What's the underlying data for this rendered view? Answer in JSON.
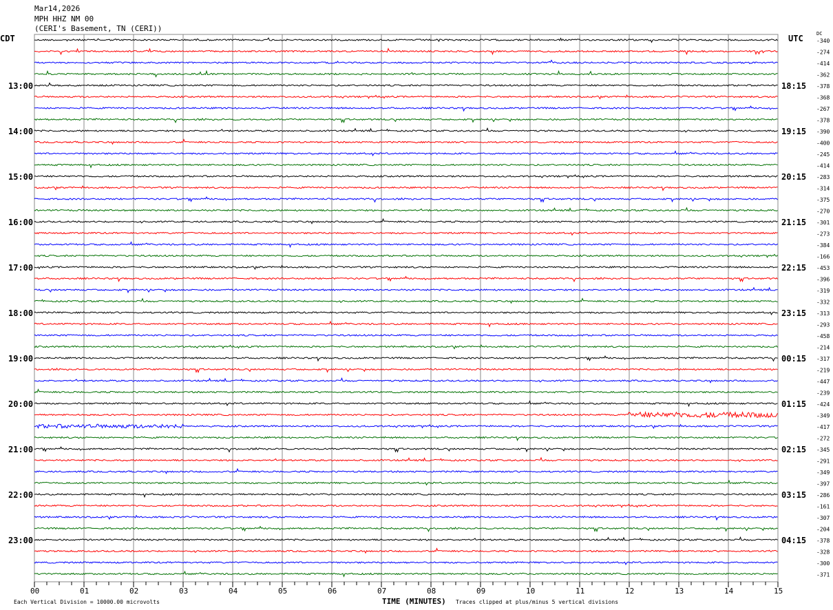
{
  "header": {
    "date": "Mar14,2026",
    "station": "MPH HHZ NM 00",
    "location": "(CERI's Basement, TN (CERI))"
  },
  "left_tz": "CDT",
  "right_tz": "UTC",
  "dc_label": "DC",
  "chart_data": {
    "type": "line",
    "title": "MPH HHZ NM 00 helicorder",
    "xlabel": "TIME (MINUTES)",
    "x_ticks": [
      "00",
      "01",
      "02",
      "03",
      "04",
      "05",
      "06",
      "07",
      "08",
      "09",
      "10",
      "11",
      "12",
      "13",
      "14",
      "15"
    ],
    "xlim": [
      0,
      15
    ],
    "trace_colors": [
      "#000000",
      "#ff0000",
      "#0000ff",
      "#007000"
    ],
    "left_labels": [
      "",
      "",
      "",
      "",
      "13:00",
      "",
      "",
      "",
      "14:00",
      "",
      "",
      "",
      "15:00",
      "",
      "",
      "",
      "16:00",
      "",
      "",
      "",
      "17:00",
      "",
      "",
      "",
      "18:00",
      "",
      "",
      "",
      "19:00",
      "",
      "",
      "",
      "20:00",
      "",
      "",
      "",
      "21:00",
      "",
      "",
      "",
      "22:00",
      "",
      "",
      "",
      "23:00",
      "",
      "",
      ""
    ],
    "right_labels": [
      "",
      "",
      "",
      "",
      "18:15",
      "",
      "",
      "",
      "19:15",
      "",
      "",
      "",
      "20:15",
      "",
      "",
      "",
      "21:15",
      "",
      "",
      "",
      "22:15",
      "",
      "",
      "",
      "23:15",
      "",
      "",
      "",
      "00:15",
      "",
      "",
      "",
      "01:15",
      "",
      "",
      "",
      "02:15",
      "",
      "",
      "",
      "03:15",
      "",
      "",
      "",
      "04:15",
      "",
      "",
      ""
    ],
    "dc_offsets": [
      "-340",
      "-274",
      "-414",
      "-362",
      "-378",
      "-368",
      "-267",
      "-378",
      "-390",
      "-400",
      "-245",
      "-414",
      "-283",
      "-314",
      "-375",
      "-270",
      "-301",
      "-273",
      "-384",
      "-166",
      "-453",
      "-396",
      "-319",
      "-332",
      "-313",
      "-293",
      "-458",
      "-214",
      "-317",
      "-219",
      "-447",
      "-239",
      "-424",
      "-349",
      "-417",
      "-272",
      "-345",
      "-291",
      "-349",
      "-397",
      "-286",
      "-161",
      "-307",
      "-204",
      "-378",
      "-328",
      "-300",
      "-371"
    ]
  },
  "footer": {
    "scale": "Each Vertical Division = 10000.00 microvolts",
    "clip": "Traces clipped at plus/minus 5 vertical divisions"
  }
}
